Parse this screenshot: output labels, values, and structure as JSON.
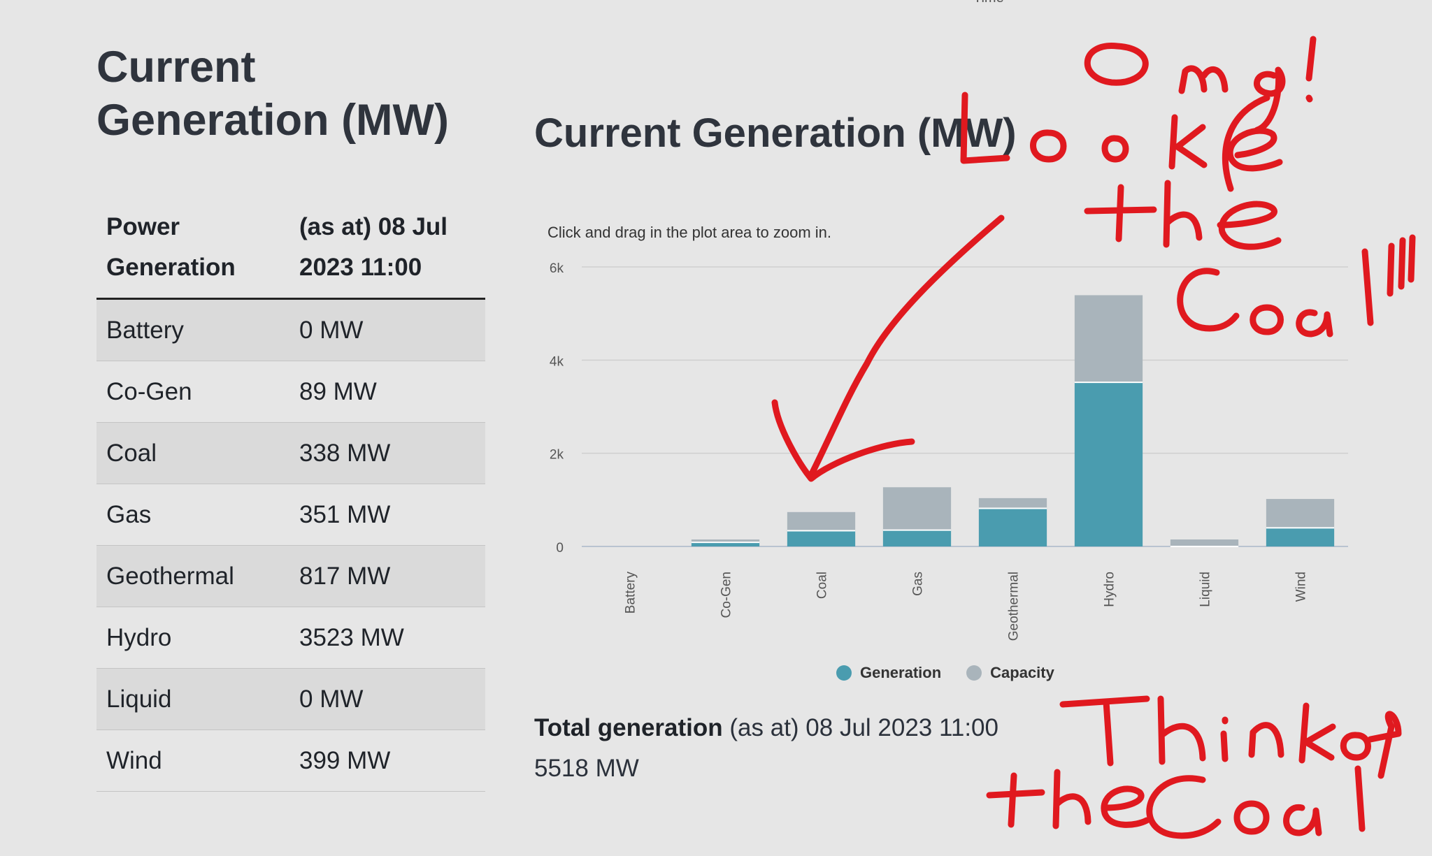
{
  "page": {
    "cut_label": "Time",
    "left_title": "Current Generation (MW)",
    "table": {
      "headers": [
        "Power Generation",
        "(as at) 08 Jul 2023 11:00"
      ],
      "rows": [
        {
          "source": "Battery",
          "value": "0 MW"
        },
        {
          "source": "Co-Gen",
          "value": "89 MW"
        },
        {
          "source": "Coal",
          "value": "338 MW"
        },
        {
          "source": "Gas",
          "value": "351 MW"
        },
        {
          "source": "Geothermal",
          "value": "817 MW"
        },
        {
          "source": "Hydro",
          "value": "3523 MW"
        },
        {
          "source": "Liquid",
          "value": "0 MW"
        },
        {
          "source": "Wind",
          "value": "399 MW"
        }
      ]
    },
    "total": {
      "label": "Total generation",
      "as_at": " (as at) 08 Jul 2023 11:00",
      "value": "5518 MW"
    }
  },
  "chart_data": {
    "type": "bar",
    "stacked": true,
    "title": "Current Generation (MW)",
    "subtitle": "Click and drag in the plot area to zoom in.",
    "categories": [
      "Battery",
      "Co-Gen",
      "Coal",
      "Gas",
      "Geothermal",
      "Hydro",
      "Liquid",
      "Wind"
    ],
    "series": [
      {
        "name": "Generation",
        "color": "#4a9caf",
        "values": [
          0,
          89,
          338,
          351,
          817,
          3523,
          0,
          399
        ]
      },
      {
        "name": "Capacity",
        "color": "#a9b4bb",
        "values": [
          0,
          60,
          400,
          920,
          220,
          1870,
          150,
          620
        ]
      }
    ],
    "ylim": [
      0,
      6000
    ],
    "yticks": [
      0,
      2000,
      4000,
      6000
    ],
    "ytick_labels": [
      "0",
      "2k",
      "4k",
      "6k"
    ],
    "grid": true,
    "legend": "bottom-center"
  },
  "annotations": {
    "color": "#e0191f",
    "texts": [
      "Omg! Look the Coal!!!",
      "Think of the Coal"
    ]
  }
}
